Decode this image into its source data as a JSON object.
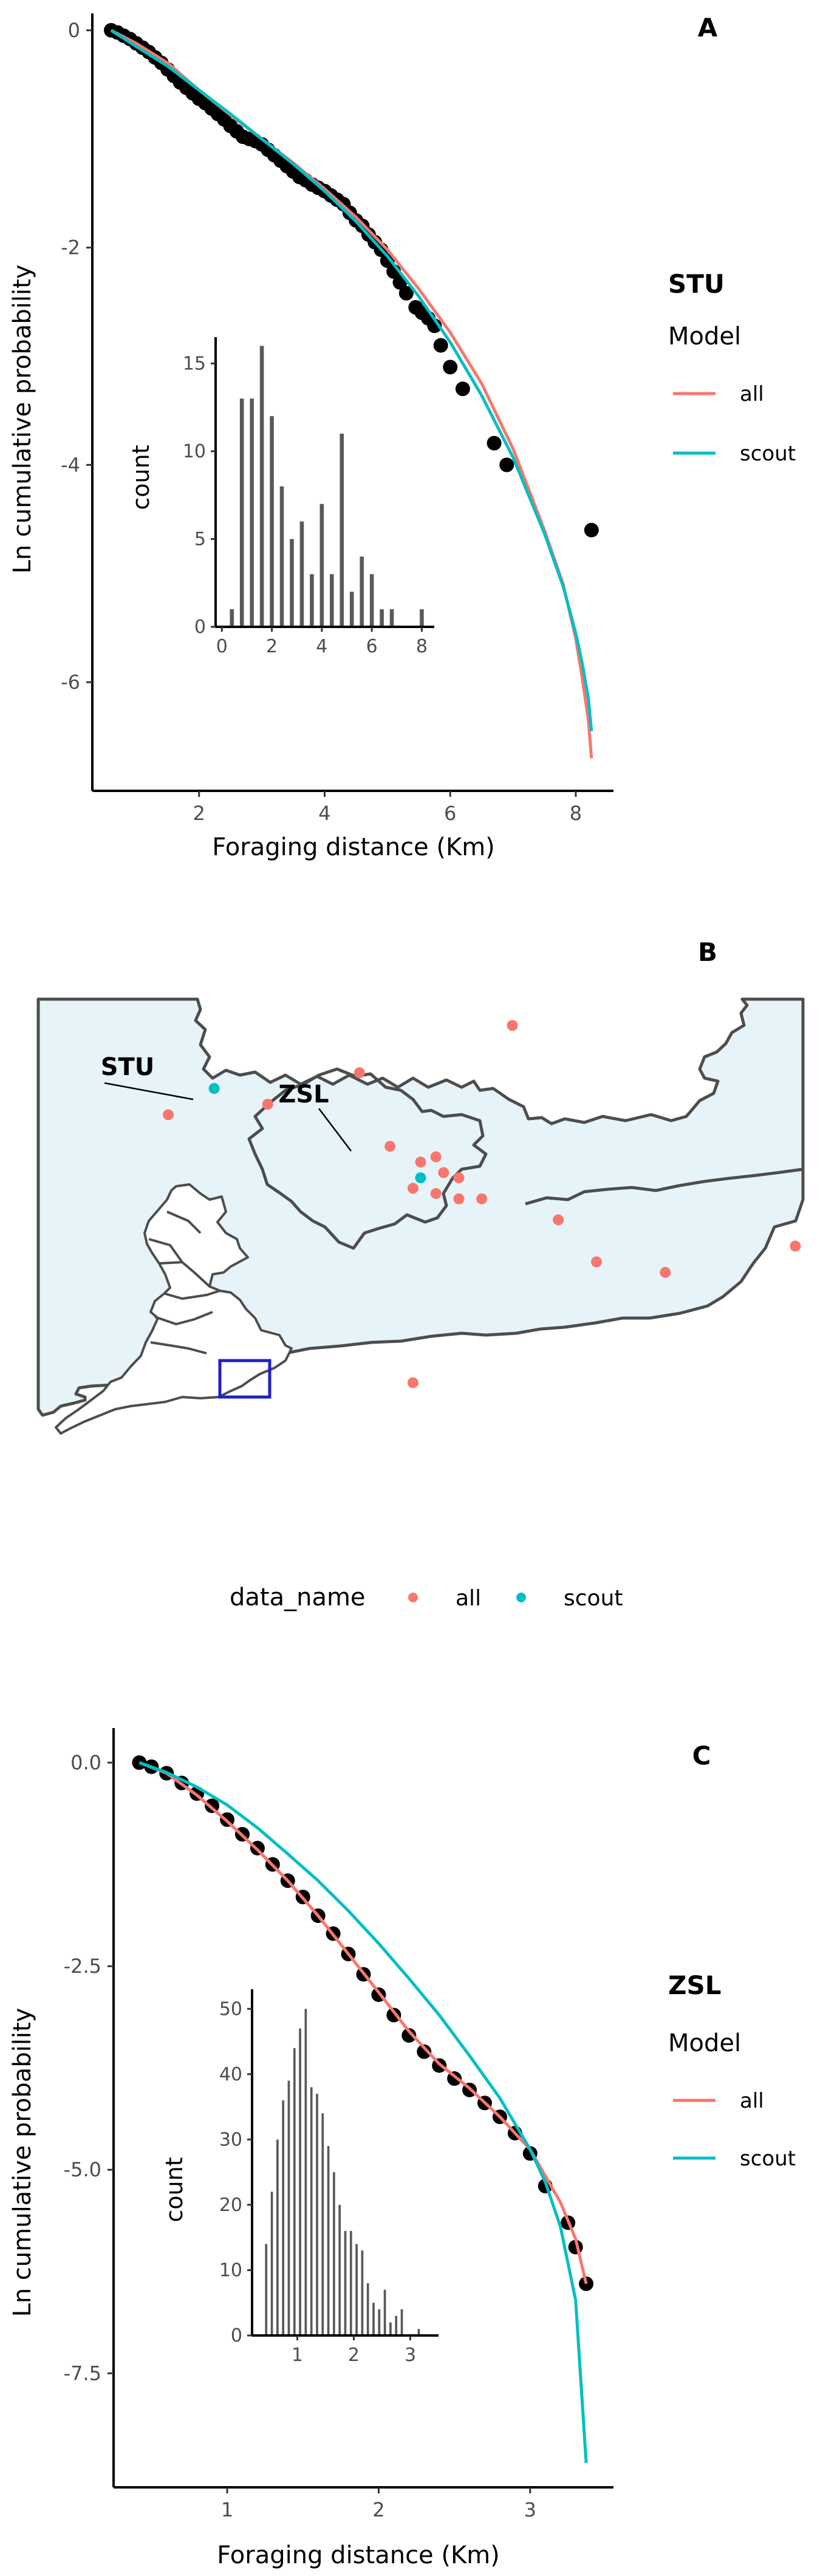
{
  "panels": {
    "A": {
      "tag": "A",
      "xlabel": "Foraging distance (Km)",
      "ylabel": "Ln cumulative probability",
      "legend_title": "STU",
      "legend_subtitle": "Model",
      "legend_items": [
        "all",
        "scout"
      ],
      "inset": {
        "ylabel": "count"
      }
    },
    "B": {
      "tag": "B",
      "legend_title": "data_name",
      "legend_items": [
        "all",
        "scout"
      ],
      "labels": {
        "stu": "STU",
        "zsl": "ZSL"
      }
    },
    "C": {
      "tag": "C",
      "xlabel": "Foraging distance (Km)",
      "ylabel": "Ln cumulative probability",
      "legend_title": "ZSL",
      "legend_subtitle": "Model",
      "legend_items": [
        "all",
        "scout"
      ],
      "inset": {
        "ylabel": "count"
      }
    }
  },
  "colors": {
    "all": "#F8766D",
    "scout": "#00BFC4",
    "points": "#000000",
    "map_fill": "#E6F4FA",
    "map_border": "#4D4D4D",
    "inset_box": "#1F1FCC"
  },
  "chart_data": [
    {
      "type": "scatter",
      "panel": "A",
      "x_ticks": [
        2,
        4,
        6,
        8
      ],
      "y_ticks": [
        0,
        -2,
        -4,
        -6
      ],
      "xlim": [
        0.3,
        8.6
      ],
      "ylim": [
        -7,
        0.1
      ],
      "points": {
        "x": [
          0.6,
          0.7,
          0.8,
          0.9,
          1.0,
          1.1,
          1.2,
          1.3,
          1.4,
          1.5,
          1.6,
          1.7,
          1.8,
          1.9,
          2.0,
          2.1,
          2.2,
          2.3,
          2.4,
          2.5,
          2.6,
          2.7,
          2.8,
          2.9,
          3.0,
          3.1,
          3.2,
          3.3,
          3.4,
          3.5,
          3.6,
          3.7,
          3.8,
          3.9,
          4.0,
          4.1,
          4.2,
          4.3,
          4.4,
          4.5,
          4.6,
          4.7,
          4.8,
          4.9,
          5.0,
          5.1,
          5.2,
          5.3,
          5.45,
          5.55,
          5.65,
          5.75,
          5.85,
          6.0,
          6.2,
          6.7,
          6.9,
          8.25
        ],
        "y": [
          0,
          -0.02,
          -0.05,
          -0.08,
          -0.12,
          -0.16,
          -0.2,
          -0.25,
          -0.3,
          -0.36,
          -0.42,
          -0.48,
          -0.53,
          -0.58,
          -0.63,
          -0.67,
          -0.72,
          -0.77,
          -0.82,
          -0.88,
          -0.93,
          -0.98,
          -1.0,
          -1.02,
          -1.05,
          -1.1,
          -1.15,
          -1.2,
          -1.25,
          -1.3,
          -1.35,
          -1.38,
          -1.42,
          -1.45,
          -1.48,
          -1.52,
          -1.56,
          -1.6,
          -1.68,
          -1.75,
          -1.8,
          -1.88,
          -1.95,
          -2.02,
          -2.12,
          -2.22,
          -2.32,
          -2.42,
          -2.55,
          -2.6,
          -2.65,
          -2.72,
          -2.9,
          -3.1,
          -3.3,
          -3.8,
          -4.0,
          -4.6
        ]
      },
      "series": [
        {
          "name": "all",
          "x": [
            0.6,
            1,
            1.5,
            2,
            2.5,
            3,
            3.5,
            4,
            4.5,
            5,
            5.5,
            6,
            6.5,
            7,
            7.5,
            7.8,
            8,
            8.1,
            8.2,
            8.25
          ],
          "y": [
            0,
            -0.12,
            -0.3,
            -0.55,
            -0.78,
            -1.0,
            -1.22,
            -1.46,
            -1.72,
            -2.02,
            -2.38,
            -2.78,
            -3.25,
            -3.85,
            -4.6,
            -5.1,
            -5.6,
            -5.95,
            -6.35,
            -6.7
          ]
        },
        {
          "name": "scout",
          "x": [
            0.6,
            1,
            1.5,
            2,
            2.5,
            3,
            3.5,
            4,
            4.5,
            5,
            5.5,
            6,
            6.5,
            7,
            7.5,
            7.8,
            8,
            8.1,
            8.2,
            8.25
          ],
          "y": [
            0,
            -0.15,
            -0.33,
            -0.55,
            -0.77,
            -1.0,
            -1.23,
            -1.48,
            -1.76,
            -2.08,
            -2.45,
            -2.87,
            -3.36,
            -3.93,
            -4.63,
            -5.12,
            -5.55,
            -5.82,
            -6.15,
            -6.45
          ]
        }
      ],
      "inset": {
        "type": "bar",
        "x_ticks": [
          0,
          2,
          4,
          6,
          8
        ],
        "y_ticks": [
          0,
          5,
          10,
          15
        ],
        "xlim": [
          -0.25,
          8.5
        ],
        "ylim": [
          0,
          16.5
        ],
        "bins_x": [
          0.4,
          0.8,
          1.2,
          1.6,
          2.0,
          2.4,
          2.8,
          3.2,
          3.6,
          4.0,
          4.4,
          4.8,
          5.2,
          5.6,
          6.0,
          6.4,
          6.8,
          7.2,
          7.6,
          8.0
        ],
        "counts": [
          1,
          13,
          13,
          16,
          12,
          8,
          5,
          6,
          3,
          7,
          3,
          11,
          2,
          4,
          3,
          1,
          1,
          0,
          0,
          1
        ]
      }
    },
    {
      "type": "scatter",
      "panel": "B",
      "points_all": [
        [
          0.62,
          0.05
        ],
        [
          0.42,
          0.14
        ],
        [
          0.3,
          0.2
        ],
        [
          0.17,
          0.22
        ],
        [
          0.46,
          0.28
        ],
        [
          0.52,
          0.3
        ],
        [
          0.5,
          0.31
        ],
        [
          0.53,
          0.33
        ],
        [
          0.55,
          0.34
        ],
        [
          0.49,
          0.36
        ],
        [
          0.52,
          0.37
        ],
        [
          0.58,
          0.38
        ],
        [
          0.55,
          0.38
        ],
        [
          0.68,
          0.42
        ],
        [
          0.73,
          0.5
        ],
        [
          0.82,
          0.52
        ],
        [
          0.99,
          0.47
        ],
        [
          0.49,
          0.73
        ]
      ],
      "points_scout": [
        [
          0.23,
          0.17
        ],
        [
          0.5,
          0.34
        ]
      ]
    },
    {
      "type": "scatter",
      "panel": "C",
      "x_ticks": [
        1,
        2,
        3
      ],
      "y_ticks": [
        0.0,
        -2.5,
        -5.0,
        -7.5
      ],
      "x_tick_labels": [
        "1",
        "2",
        "3"
      ],
      "y_tick_labels": [
        "0.0",
        "-2.5",
        "-5.0",
        "-7.5"
      ],
      "xlim": [
        0.25,
        3.55
      ],
      "ylim": [
        -8.9,
        0.35
      ],
      "points": {
        "x": [
          0.42,
          0.5,
          0.6,
          0.7,
          0.8,
          0.9,
          1.0,
          1.1,
          1.2,
          1.3,
          1.4,
          1.5,
          1.6,
          1.7,
          1.8,
          1.9,
          2.0,
          2.1,
          2.2,
          2.3,
          2.4,
          2.5,
          2.6,
          2.7,
          2.8,
          2.9,
          3.0,
          3.1,
          3.25,
          3.3,
          3.37
        ],
        "y": [
          0,
          -0.05,
          -0.13,
          -0.25,
          -0.38,
          -0.53,
          -0.7,
          -0.88,
          -1.05,
          -1.25,
          -1.45,
          -1.65,
          -1.88,
          -2.1,
          -2.35,
          -2.6,
          -2.85,
          -3.1,
          -3.35,
          -3.55,
          -3.72,
          -3.88,
          -4.02,
          -4.18,
          -4.35,
          -4.55,
          -4.8,
          -5.2,
          -5.65,
          -5.95,
          -6.4
        ]
      },
      "series": [
        {
          "name": "all",
          "x": [
            0.42,
            0.6,
            0.8,
            1.0,
            1.2,
            1.4,
            1.6,
            1.8,
            2.0,
            2.2,
            2.4,
            2.6,
            2.8,
            3.0,
            3.2,
            3.3,
            3.37
          ],
          "y": [
            0,
            -0.13,
            -0.4,
            -0.72,
            -1.07,
            -1.45,
            -1.88,
            -2.35,
            -2.82,
            -3.3,
            -3.7,
            -4.0,
            -4.35,
            -4.75,
            -5.4,
            -5.85,
            -6.4
          ]
        },
        {
          "name": "scout",
          "x": [
            0.42,
            0.6,
            0.8,
            1.0,
            1.2,
            1.4,
            1.6,
            1.8,
            2.0,
            2.2,
            2.4,
            2.6,
            2.8,
            3.0,
            3.1,
            3.2,
            3.3,
            3.37
          ],
          "y": [
            0,
            -0.12,
            -0.3,
            -0.52,
            -0.8,
            -1.12,
            -1.45,
            -1.82,
            -2.22,
            -2.65,
            -3.1,
            -3.6,
            -4.12,
            -4.75,
            -5.15,
            -5.7,
            -6.6,
            -8.6
          ]
        }
      ],
      "inset": {
        "type": "bar",
        "x_ticks": [
          1,
          2,
          3
        ],
        "y_ticks": [
          0,
          10,
          20,
          30,
          40,
          50
        ],
        "xlim": [
          0.2,
          3.5
        ],
        "ylim": [
          0,
          53
        ],
        "bins_x": [
          0.45,
          0.55,
          0.65,
          0.75,
          0.85,
          0.95,
          1.05,
          1.15,
          1.25,
          1.35,
          1.45,
          1.55,
          1.65,
          1.75,
          1.85,
          1.95,
          2.05,
          2.15,
          2.25,
          2.35,
          2.45,
          2.55,
          2.65,
          2.75,
          2.85,
          2.95,
          3.05,
          3.15,
          3.25
        ],
        "counts": [
          14,
          22,
          30,
          36,
          39,
          44,
          47,
          50,
          38,
          37,
          34,
          29,
          25,
          20,
          16,
          16,
          14,
          13,
          8,
          5,
          4,
          7,
          2,
          3,
          4,
          0,
          0,
          1,
          0
        ]
      }
    }
  ]
}
